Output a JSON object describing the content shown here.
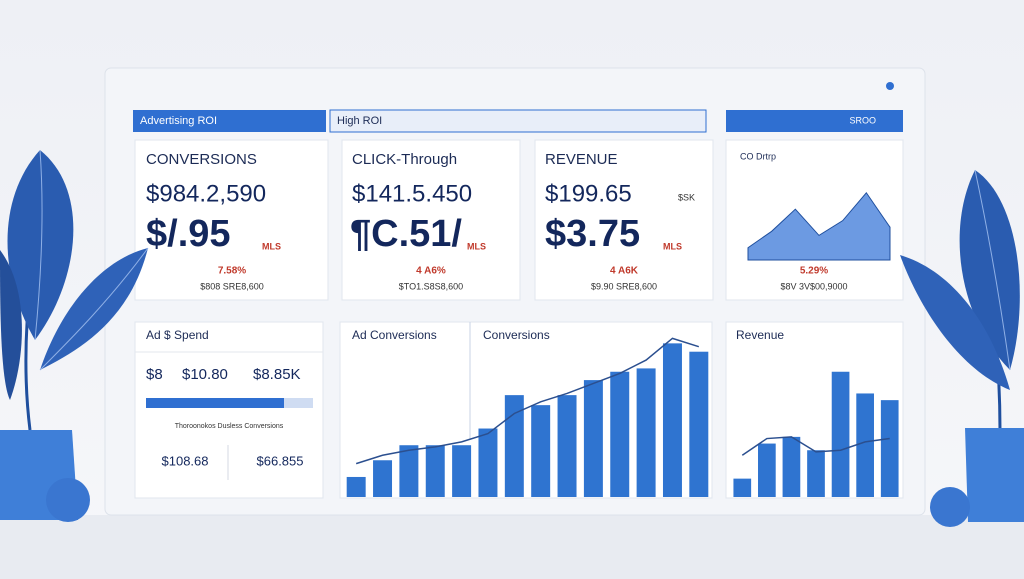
{
  "header": {
    "tabs": [
      "Advertising ROI",
      "High ROI",
      "SROO"
    ]
  },
  "cards": [
    {
      "title": "CONVERSIONS",
      "primary": "$984.2,590",
      "secondary": "$/.95",
      "unit": "MLS",
      "change": "7.58%",
      "footer": "$808 SRE8,600"
    },
    {
      "title": "CLICK-Through",
      "primary": "$141.5.450",
      "secondary": "¶C.51/",
      "unit": "MLS",
      "change": "4 A6%",
      "footer": "$TO1.S8S8,600"
    },
    {
      "title": "REVENUE",
      "primary": "$199.65",
      "tag": "$SK",
      "secondary": "$3.75",
      "unit": "MLS",
      "change": "4 A6K",
      "footer": "$9.90 SRE8,600"
    }
  ],
  "trend_card": {
    "change": "5.29%",
    "footer": "$8V 3V$00,9000"
  },
  "spend_panel": {
    "title": "Ad $ Spend",
    "figures": [
      "$8",
      "$10.80",
      "$8.85K"
    ],
    "caption": "Thoroonokos Dusless Conversions",
    "totals": [
      "$108.68",
      "$66.855"
    ]
  },
  "chart_data": [
    {
      "type": "area",
      "title": "CO Drtrp",
      "values": [
        15,
        35,
        62,
        30,
        48,
        82,
        40
      ],
      "ylim": [
        0,
        100
      ],
      "color": "#3b78d8"
    },
    {
      "type": "bar",
      "title": "Ad Conversions",
      "subtitle": "Conversions",
      "values": [
        12,
        22,
        31,
        31,
        31,
        41,
        61,
        55,
        61,
        70,
        75,
        77,
        92,
        87
      ],
      "ylim": [
        0,
        100
      ],
      "color": "#2f74d0",
      "line": {
        "values": [
          20,
          25,
          28,
          30,
          33,
          38,
          50,
          57,
          62,
          68,
          74,
          82,
          95,
          90
        ],
        "color": "#2b4f8f"
      }
    },
    {
      "type": "bar",
      "title": "Revenue",
      "values": [
        11,
        32,
        36,
        28,
        75,
        62,
        58
      ],
      "ylim": [
        0,
        100
      ],
      "color": "#2f74d0",
      "line": {
        "values": [
          25,
          35,
          36,
          27,
          28,
          33,
          35
        ],
        "color": "#2b4f8f"
      }
    }
  ]
}
